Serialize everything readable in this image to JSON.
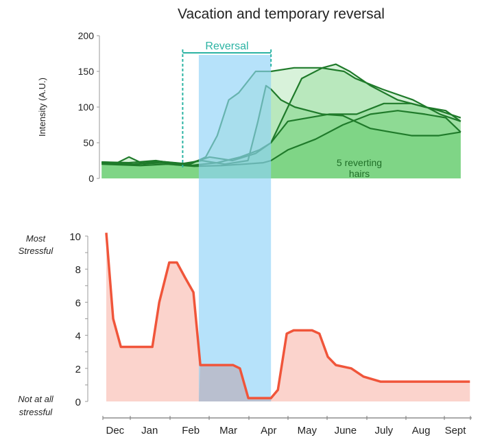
{
  "chart_data": [
    {
      "type": "line",
      "title": "Vacation and temporary reversal",
      "ylabel": "Intensity (A.U.)",
      "ylim": [
        0,
        200
      ],
      "yticks": [
        0,
        50,
        100,
        150,
        200
      ],
      "annotation_band": {
        "label": "Reversal",
        "x_start": 1.9,
        "x_end": 4.2,
        "color": "#2bb3a3"
      },
      "shaded_band": {
        "x_start": 2.32,
        "x_end": 4.2,
        "color": "#8fd3f7"
      },
      "annotation_text": [
        "5 reverting",
        "hairs"
      ],
      "line_color": "#1f7a2a",
      "fill_color": "#4cc257",
      "series": [
        {
          "x": [
            -0.21,
            0.2,
            0.5,
            0.9,
            1.3,
            1.7,
            2.1,
            2.5,
            2.8,
            3.1,
            3.36,
            3.8,
            4.2,
            4.8,
            5.5,
            6.1,
            6.4,
            7.1,
            7.9,
            8.6,
            9.14
          ],
          "y": [
            23,
            22,
            30,
            20,
            24,
            22,
            20,
            30,
            60,
            110,
            120,
            150,
            150,
            155,
            155,
            150,
            140,
            125,
            110,
            90,
            80
          ]
        },
        {
          "x": [
            -0.21,
            0.5,
            1.2,
            1.8,
            2.4,
            3.0,
            3.6,
            3.86,
            4.07,
            4.2,
            4.46,
            4.82,
            5.54,
            6.07,
            6.79,
            7.32,
            7.86,
            8.57,
            9.14
          ],
          "y": [
            23,
            22,
            25,
            20,
            25,
            20,
            25,
            80,
            130,
            125,
            110,
            100,
            90,
            88,
            70,
            65,
            60,
            60,
            65
          ]
        },
        {
          "x": [
            -0.21,
            0.6,
            1.3,
            2.0,
            2.6,
            3.2,
            3.8,
            4.2,
            4.64,
            5.0,
            5.54,
            5.89,
            6.25,
            6.79,
            7.5,
            8.21,
            8.75,
            9.14
          ],
          "y": [
            22,
            20,
            24,
            20,
            30,
            25,
            35,
            50,
            100,
            140,
            155,
            160,
            150,
            130,
            110,
            100,
            95,
            80
          ]
        },
        {
          "x": [
            -0.21,
            0.7,
            1.4,
            2.1,
            2.8,
            3.4,
            3.9,
            4.2,
            4.64,
            5.18,
            5.71,
            6.43,
            7.14,
            7.86,
            8.57,
            9.14
          ],
          "y": [
            21,
            20,
            22,
            18,
            22,
            30,
            40,
            50,
            80,
            85,
            90,
            90,
            105,
            105,
            95,
            85
          ]
        },
        {
          "x": [
            -0.21,
            0.8,
            1.5,
            2.2,
            2.9,
            3.5,
            4.0,
            4.2,
            4.64,
            5.36,
            6.07,
            6.79,
            7.5,
            8.21,
            8.75,
            9.14
          ],
          "y": [
            20,
            18,
            20,
            17,
            18,
            20,
            22,
            25,
            40,
            55,
            75,
            90,
            95,
            90,
            85,
            65
          ]
        }
      ]
    },
    {
      "type": "area",
      "ylim": [
        0,
        10
      ],
      "yticks": [
        0,
        2,
        4,
        6,
        8,
        10
      ],
      "ytick_top_label": [
        "Most",
        "Stressful"
      ],
      "ytick_bottom_label": [
        "Not at all",
        "stressful"
      ],
      "xtick_labels": [
        "Dec",
        "Jan",
        "Feb",
        "Mar",
        "Apr",
        "May",
        "June",
        "July",
        "Aug",
        "Sept"
      ],
      "xtick_positions": [
        0.14,
        1.04,
        2.11,
        3.09,
        4.14,
        5.14,
        6.14,
        7.14,
        8.11,
        9.0
      ],
      "line_color": "#f0553a",
      "fill_color": "#fbd3cc",
      "overlap_fill_color": "#b9bfcf",
      "series": [
        {
          "x": [
            -0.09,
            0.09,
            0.29,
            1.11,
            1.29,
            1.55,
            1.75,
            1.96,
            2.18,
            2.36,
            3.21,
            3.39,
            3.61,
            4.2,
            4.38,
            4.61,
            4.79,
            5.27,
            5.46,
            5.68,
            5.89,
            6.29,
            6.61,
            7.05,
            9.38
          ],
          "y": [
            10.2,
            5,
            3.3,
            3.3,
            6,
            8.4,
            8.4,
            7.5,
            6.6,
            2.2,
            2.2,
            2,
            0.2,
            0.2,
            0.7,
            4.1,
            4.3,
            4.3,
            4.1,
            2.7,
            2.2,
            2,
            1.5,
            1.2,
            1.2
          ]
        }
      ]
    }
  ]
}
